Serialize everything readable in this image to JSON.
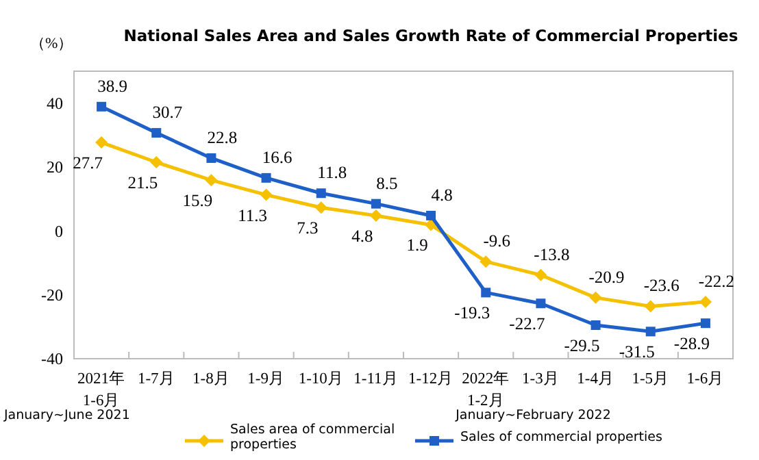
{
  "chart_data": {
    "type": "line",
    "title": "National Sales Area and Sales Growth Rate of Commercial Properties",
    "ylabel": "（%）",
    "categories": [
      "2021年\n1-6月",
      "1-7月",
      "1-8月",
      "1-9月",
      "1-10月",
      "1-11月",
      "1-12月",
      "2022年\n1-2月",
      "1-3月",
      "1-4月",
      "1-5月",
      "1-6月"
    ],
    "series": [
      {
        "name": "Sales area of commercial properties",
        "color": "#f5c000",
        "marker": "diamond",
        "values": [
          27.7,
          21.5,
          15.9,
          11.3,
          7.3,
          4.8,
          1.9,
          -9.6,
          -13.8,
          -20.9,
          -23.6,
          -22.2
        ]
      },
      {
        "name": "Sales of commercial properties",
        "color": "#1f5fc8",
        "marker": "square",
        "values": [
          38.9,
          30.7,
          22.8,
          16.6,
          11.8,
          8.5,
          4.8,
          -19.3,
          -22.7,
          -29.5,
          -31.5,
          -28.9
        ]
      }
    ],
    "ylim": [
      -40,
      50
    ],
    "yticks": [
      -40,
      -20,
      0,
      20,
      40
    ],
    "data_labels": true,
    "grid": false,
    "legend": "bottom",
    "annotations": [
      "January~June 2021",
      "January~February 2022"
    ]
  }
}
